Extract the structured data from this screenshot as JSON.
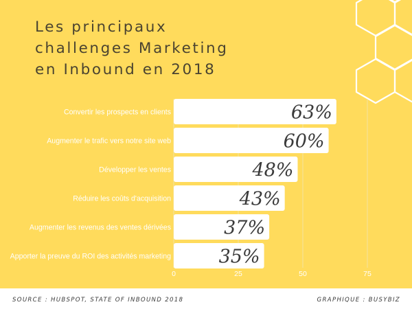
{
  "title_lines": [
    "Les principaux",
    "challenges Marketing",
    "en Inbound en 2018"
  ],
  "footer": {
    "source": "SOURCE : HUBSPOT, STATE OF INBOUND 2018",
    "credit": "GRAPHIQUE : BUSYBIZ"
  },
  "colors": {
    "background": "#FFDB5C",
    "bar": "#FFFFFF",
    "text": "#4A4330",
    "value_label": "#3A3A3A"
  },
  "chart_data": {
    "type": "bar",
    "orientation": "horizontal",
    "categories": [
      "Convertir les prospects en clients",
      "Augmenter le trafic vers notre site web",
      "Développer les ventes",
      "Réduire les coûts d'acquisition",
      "Augmenter les revenus des ventes dérivées",
      "Apporter la preuve du ROI des activités marketing"
    ],
    "values": [
      63,
      60,
      48,
      43,
      37,
      35
    ],
    "value_labels": [
      "63%",
      "60%",
      "48%",
      "43%",
      "37%",
      "35%"
    ],
    "xlim": [
      0,
      75
    ],
    "x_ticks": [
      "0",
      "25",
      "50",
      "75"
    ],
    "grid": true,
    "legend": "none"
  }
}
